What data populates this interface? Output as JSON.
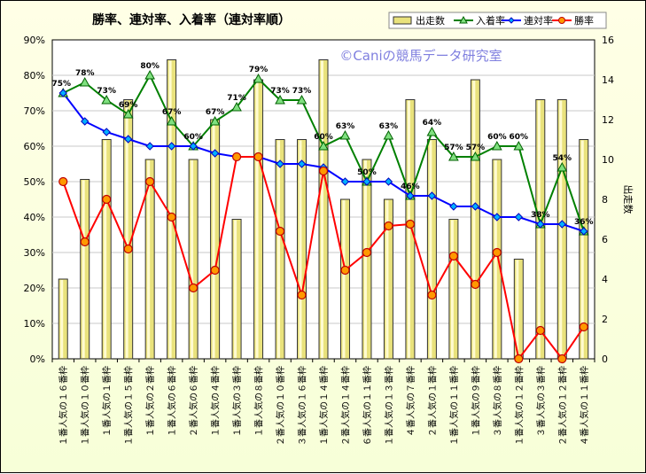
{
  "chart_data": {
    "type": "bar+line",
    "title": "勝率、連対率、入着率（連対率順）",
    "watermark": "©Caniの競馬データ研究室",
    "y2label": "出走数",
    "ylim": [
      0,
      90
    ],
    "ylim_right": [
      0,
      16
    ],
    "yticks": [
      "0%",
      "10%",
      "20%",
      "30%",
      "40%",
      "50%",
      "60%",
      "70%",
      "80%",
      "90%"
    ],
    "yticks_right": [
      "0",
      "2",
      "4",
      "6",
      "8",
      "10",
      "12",
      "14",
      "16"
    ],
    "grid": true,
    "legend_position": "top-right",
    "categories": [
      "１番人気の１６番枠",
      "１番人気の１０番枠",
      "１番人気の１番枠",
      "１番人気の１５番枠",
      "１番人気の２番枠",
      "１番人気の６番枠",
      "２番人気の６番枠",
      "１番人気の４番枠",
      "１番人気の３番枠",
      "１番人気の８番枠",
      "２番人気の１０番枠",
      "３番人気の１６番枠",
      "１番人気の１４番枠",
      "２番人気の１４番枠",
      "６番人気の１１番枠",
      "１番人気の１３番枠",
      "４番人気の７番枠",
      "２番人気の１番枠",
      "１番人気の１１番枠",
      "１番人気の９番枠",
      "３番人気の８番枠",
      "１番人気の１２番枠",
      "３番人気の３番枠",
      "２番人気の１２番枠",
      "４番人気の１１番枠"
    ],
    "series": [
      {
        "name": "出走数",
        "type": "bar",
        "axis": "right",
        "color": "#e6e07a",
        "values": [
          4,
          9,
          11,
          13,
          10,
          15,
          10,
          12,
          7,
          14,
          11,
          11,
          15,
          8,
          10,
          8,
          13,
          11,
          7,
          14,
          10,
          5,
          13,
          13,
          11
        ]
      },
      {
        "name": "入着率",
        "type": "line",
        "axis": "left",
        "color": "#008000",
        "marker": "triangle",
        "values": [
          75,
          78,
          73,
          69,
          80,
          67,
          60,
          67,
          71,
          79,
          73,
          73,
          60,
          63,
          50,
          63,
          46,
          64,
          57,
          57,
          60,
          60,
          38,
          54,
          36
        ],
        "labels": [
          "75%",
          "78%",
          "73%",
          "69%",
          "80%",
          "67%",
          "60%",
          "67%",
          "71%",
          "79%",
          "73%",
          "73%",
          "60%",
          "63%",
          "50%",
          "63%",
          "46%",
          "64%",
          "57%",
          "57%",
          "60%",
          "60%",
          "38%",
          "54%",
          "36%"
        ]
      },
      {
        "name": "連対率",
        "type": "line",
        "axis": "left",
        "color": "#0000ff",
        "marker": "diamond",
        "values": [
          75,
          67,
          64,
          62,
          60,
          60,
          60,
          58,
          57,
          57,
          55,
          55,
          54,
          50,
          50,
          50,
          46,
          46,
          43,
          43,
          40,
          40,
          38,
          38,
          36
        ]
      },
      {
        "name": "勝率",
        "type": "line",
        "axis": "left",
        "color": "#ff0000",
        "marker": "circle",
        "values": [
          50,
          33,
          45,
          31,
          50,
          40,
          20,
          25,
          57,
          57,
          36,
          18,
          53,
          25,
          30,
          37.5,
          38,
          18,
          29,
          21,
          30,
          0,
          8,
          0,
          9
        ]
      }
    ]
  }
}
